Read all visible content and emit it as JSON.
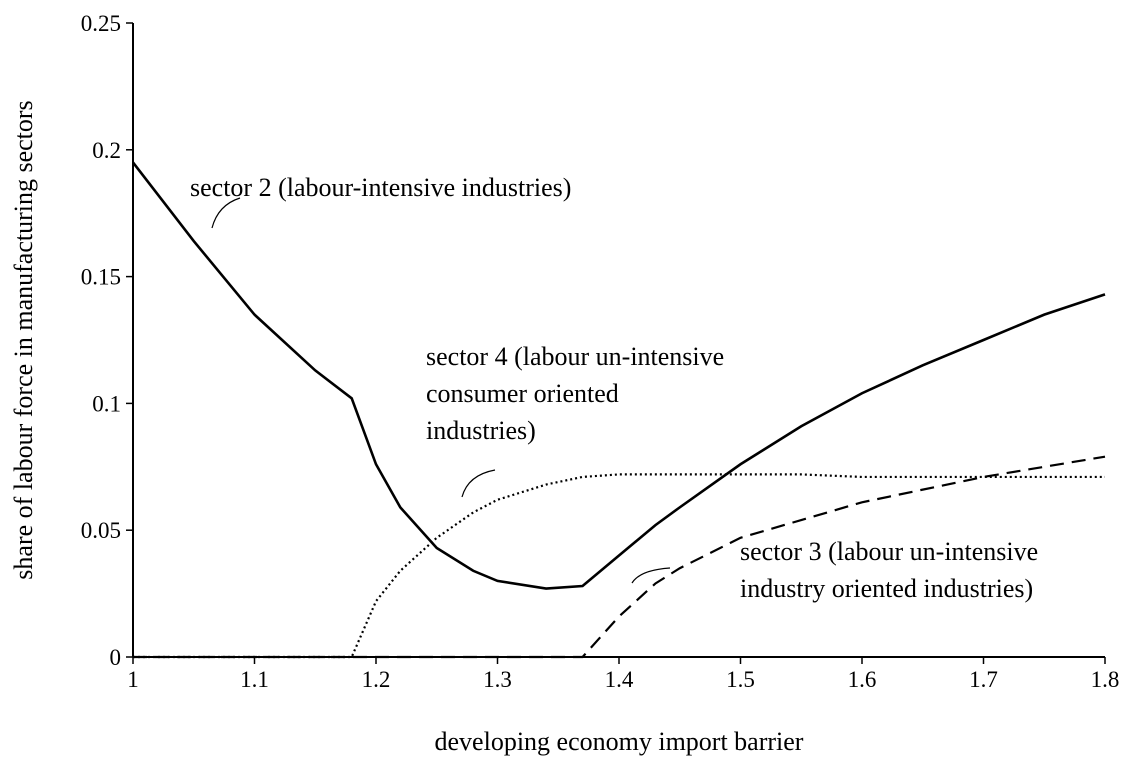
{
  "chart_data": {
    "type": "line",
    "xlabel": "developing economy import barrier",
    "ylabel": "share of labour force in manufacturing sectors",
    "x": [
      1,
      1.05,
      1.1,
      1.15,
      1.18,
      1.2,
      1.22,
      1.25,
      1.28,
      1.3,
      1.34,
      1.37,
      1.4,
      1.43,
      1.45,
      1.5,
      1.55,
      1.6,
      1.65,
      1.7,
      1.75,
      1.8
    ],
    "series": [
      {
        "name": [
          "sector 2 (labour-intensive industries)"
        ],
        "color": "#000000",
        "dash": "solid",
        "values": [
          0.195,
          0.164,
          0.135,
          0.113,
          0.102,
          0.076,
          0.059,
          0.043,
          0.034,
          0.03,
          0.027,
          0.028,
          0.04,
          0.052,
          0.059,
          0.076,
          0.091,
          0.104,
          0.115,
          0.125,
          0.135,
          0.143
        ]
      },
      {
        "name": [
          "sector 4 (labour un-intensive",
          "consumer oriented",
          "industries)"
        ],
        "color": "#000000",
        "dash": "dotted",
        "values": [
          0,
          0,
          0,
          0,
          0,
          0.022,
          0.034,
          0.047,
          0.057,
          0.062,
          0.068,
          0.071,
          0.072,
          0.072,
          0.072,
          0.072,
          0.072,
          0.071,
          0.071,
          0.071,
          0.071,
          0.071
        ]
      },
      {
        "name": [
          "sector 3 (labour un-intensive",
          "industry oriented industries)"
        ],
        "color": "#000000",
        "dash": "dashed",
        "values": [
          0,
          0,
          0,
          0,
          0,
          0,
          0,
          0,
          0,
          0,
          0,
          0,
          0.016,
          0.029,
          0.035,
          0.047,
          0.054,
          0.061,
          0.066,
          0.071,
          0.075,
          0.079
        ]
      }
    ],
    "xlim": [
      1,
      1.8
    ],
    "xticks": [
      1,
      1.1,
      1.2,
      1.3,
      1.4,
      1.5,
      1.6,
      1.7,
      1.8
    ],
    "ylim": [
      0,
      0.25
    ],
    "yticks": [
      0,
      0.05,
      0.1,
      0.15,
      0.2,
      0.25
    ],
    "grid": false
  }
}
